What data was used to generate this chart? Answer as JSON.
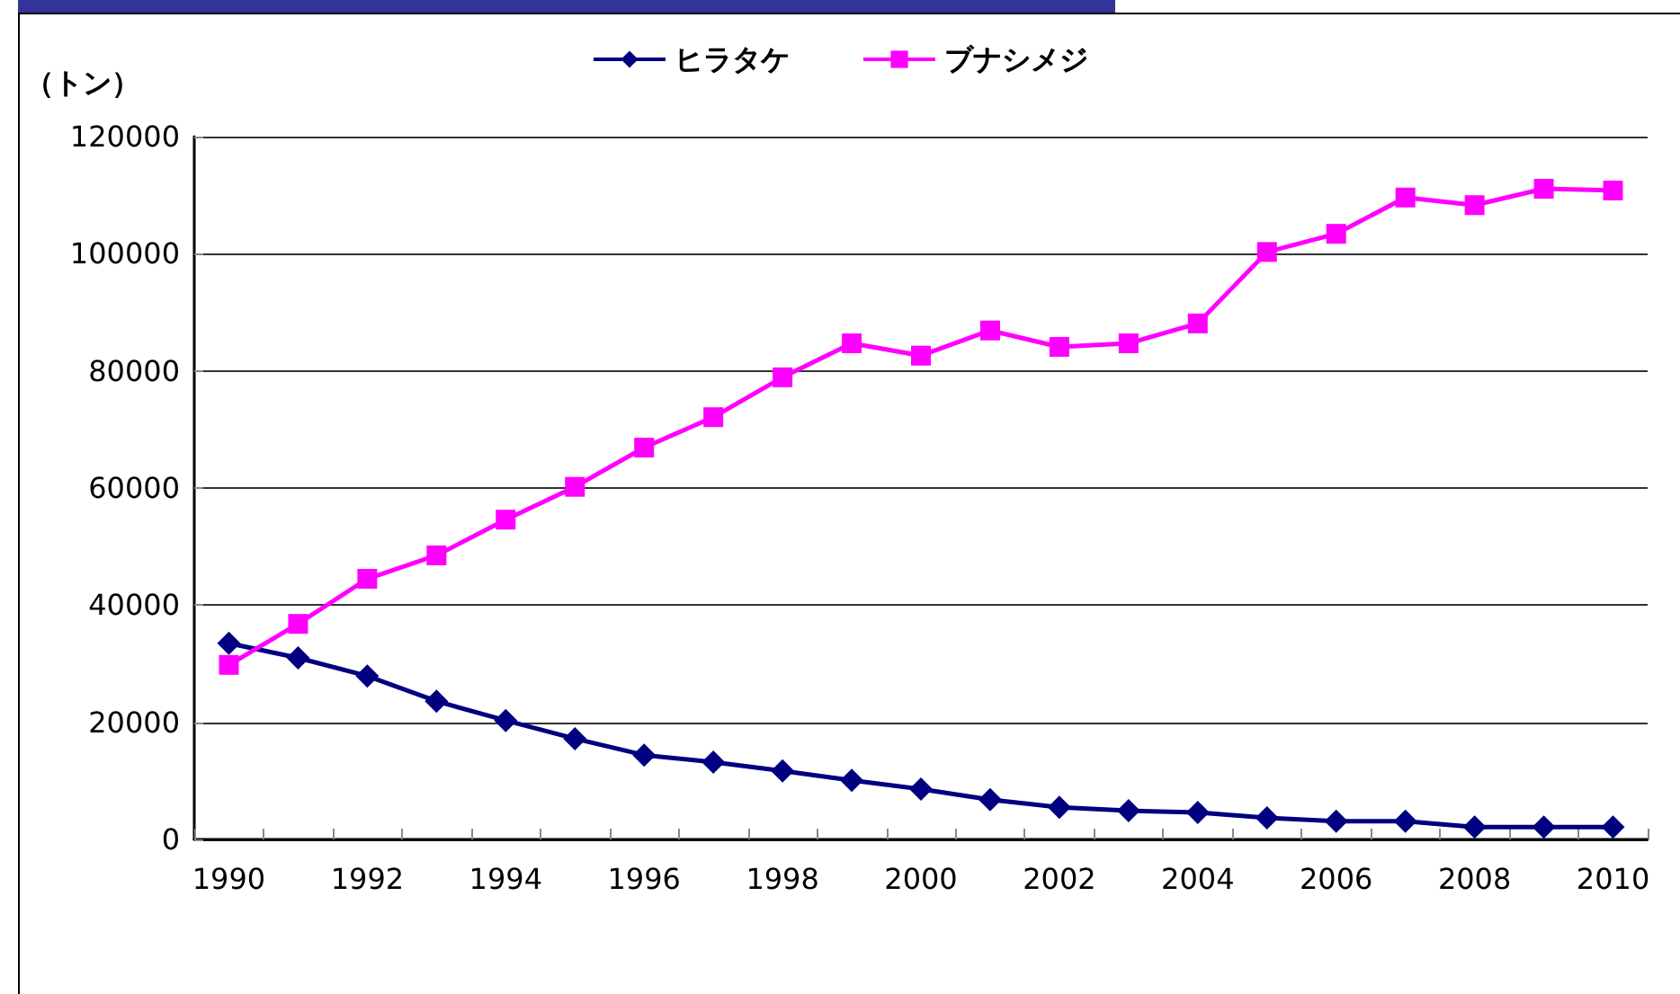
{
  "chart_data": {
    "type": "line",
    "ylabel": "（トン）",
    "categories": [
      "1990",
      null,
      "1992",
      null,
      "1994",
      null,
      "1996",
      null,
      "1998",
      null,
      "2000",
      null,
      "2002",
      null,
      "2004",
      null,
      "2006",
      null,
      "2008",
      null,
      "2010"
    ],
    "series": [
      {
        "name": "ヒラタケ",
        "color": "#000080",
        "marker": "diamond",
        "values": [
          33500,
          31000,
          27900,
          23600,
          20300,
          17200,
          14400,
          13200,
          11700,
          10100,
          8600,
          6800,
          5500,
          4900,
          4600,
          3700,
          3100,
          3100,
          2100,
          2100,
          2100
        ]
      },
      {
        "name": "ブナシメジ",
        "color": "#ff00ff",
        "marker": "square",
        "values": [
          29800,
          36800,
          44500,
          48500,
          54600,
          60200,
          66900,
          72100,
          78900,
          84700,
          82600,
          86900,
          84100,
          84700,
          88100,
          100300,
          103400,
          109600,
          108300,
          111100,
          110800
        ]
      }
    ],
    "ylim": [
      0,
      120000
    ],
    "yticks": [
      0,
      20000,
      40000,
      60000,
      80000,
      100000,
      120000
    ],
    "grid": "y",
    "legend": "top",
    "line_style": "solid"
  }
}
